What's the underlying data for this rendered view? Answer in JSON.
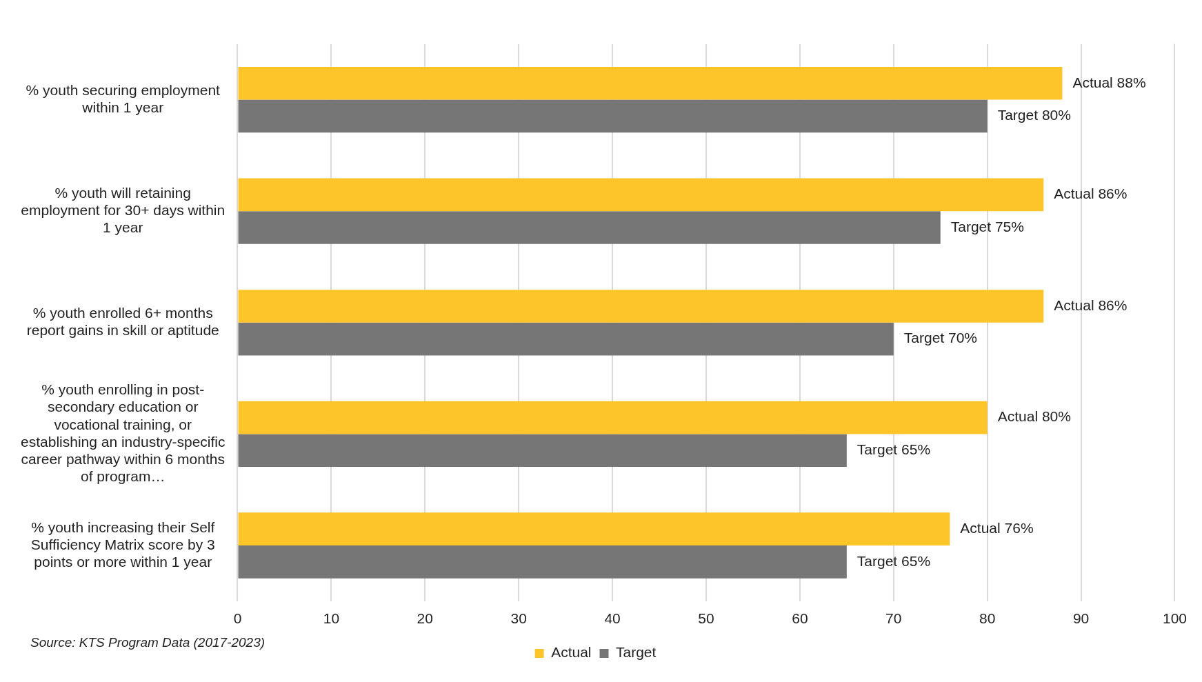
{
  "chart_data": {
    "type": "bar",
    "orientation": "horizontal",
    "categories": [
      "% youth securing employment within 1 year",
      "% youth will retaining employment for 30+ days within 1 year",
      "% youth enrolled 6+ months report gains in skill or aptitude",
      "% youth enrolling in post-secondary education or vocational training, or establishing an industry-specific career pathway within 6 months of program…",
      "% youth increasing their Self Sufficiency Matrix score by 3 points or more within 1 year"
    ],
    "series": [
      {
        "name": "Actual",
        "color": "#fdc52a",
        "values": [
          88,
          86,
          86,
          80,
          76
        ],
        "value_labels": [
          "Actual 88%",
          "Actual 86%",
          "Actual 86%",
          "Actual 80%",
          "Actual 76%"
        ]
      },
      {
        "name": "Target",
        "color": "#767676",
        "values": [
          80,
          75,
          70,
          65,
          65
        ],
        "value_labels": [
          "Target 80%",
          "Target 75%",
          "Target 70%",
          "Target 65%",
          "Target 65%"
        ]
      }
    ],
    "xlim": [
      0,
      100
    ],
    "xticks": [
      0,
      10,
      20,
      30,
      40,
      50,
      60,
      70,
      80,
      90,
      100
    ],
    "grid": "x",
    "legend": "bottom",
    "annotations": [
      "Source: KTS Program Data (2017-2023)"
    ]
  }
}
